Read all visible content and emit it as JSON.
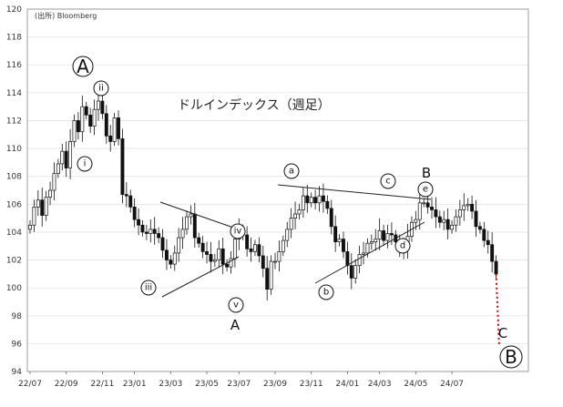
{
  "chart_data": {
    "type": "candlestick",
    "source": "(出所) Bloomberg",
    "title": "ドルインデックス（週足）",
    "ylim": [
      94,
      120
    ],
    "yticks": [
      94,
      96,
      98,
      100,
      102,
      104,
      106,
      108,
      110,
      112,
      114,
      116,
      118,
      120
    ],
    "x_ticks": [
      "22/07",
      "22/09",
      "22/11",
      "23/01",
      "23/03",
      "23/05",
      "23/07",
      "23/09",
      "23/11",
      "24/01",
      "24/03",
      "24/05",
      "24/07"
    ],
    "grid": true,
    "closes": [
      104.5,
      105.8,
      106.3,
      105.2,
      106.5,
      107.0,
      108.2,
      108.9,
      109.8,
      108.6,
      110.5,
      112.0,
      111.2,
      113.0,
      112.4,
      111.6,
      112.8,
      113.4,
      112.5,
      110.9,
      110.5,
      112.2,
      110.7,
      106.7,
      106.6,
      105.8,
      104.9,
      104.5,
      104.0,
      103.9,
      104.2,
      103.9,
      103.6,
      102.7,
      102.0,
      101.7,
      102.5,
      103.6,
      104.2,
      105.1,
      105.3,
      103.6,
      103.2,
      102.6,
      102.4,
      101.9,
      102.0,
      102.8,
      101.7,
      101.5,
      102.1,
      103.5,
      104.1,
      103.8,
      102.8,
      102.6,
      103.1,
      102.3,
      101.4,
      99.9,
      101.9,
      101.9,
      102.6,
      103.4,
      104.2,
      105.0,
      105.3,
      105.6,
      106.6,
      106.1,
      106.5,
      106.1,
      106.6,
      106.2,
      105.7,
      104.4,
      103.3,
      103.5,
      102.6,
      101.6,
      100.7,
      101.6,
      102.4,
      102.5,
      103.2,
      103.3,
      103.5,
      104.1,
      103.4,
      103.9,
      103.8,
      103.3,
      102.7,
      102.9,
      103.7,
      104.7,
      104.9,
      106.1,
      106.1,
      105.8,
      105.6,
      105.1,
      104.7,
      104.9,
      104.2,
      104.5,
      105.1,
      105.6,
      105.9,
      106.0,
      105.5,
      104.4,
      104.2,
      103.4,
      103.1,
      101.9,
      101.0
    ],
    "projection": {
      "from": 101.0,
      "to": 95.8,
      "color": "#e00000",
      "style": "dotted"
    },
    "wave_labels": [
      {
        "text": "A",
        "style": "circled"
      },
      {
        "text": "ii",
        "style": "circled"
      },
      {
        "text": "i",
        "style": "circled"
      },
      {
        "text": "iii",
        "style": "circled"
      },
      {
        "text": "iv",
        "style": "circled"
      },
      {
        "text": "v",
        "style": "circled"
      },
      {
        "text": "A",
        "style": "plain"
      },
      {
        "text": "a",
        "style": "circled"
      },
      {
        "text": "b",
        "style": "circled"
      },
      {
        "text": "c",
        "style": "circled"
      },
      {
        "text": "d",
        "style": "circled"
      },
      {
        "text": "e",
        "style": "circled"
      },
      {
        "text": "B",
        "style": "plain"
      },
      {
        "text": "C",
        "style": "plain"
      },
      {
        "text": "B",
        "style": "circled"
      }
    ]
  }
}
